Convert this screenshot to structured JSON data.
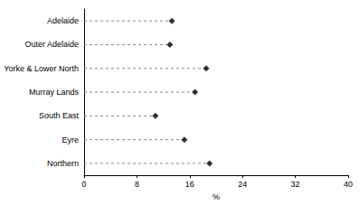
{
  "chart_data": {
    "type": "dot",
    "orientation": "horizontal",
    "categories": [
      "Adelaide",
      "Outer Adelaide",
      "Yorke & Lower North",
      "Murray Lands",
      "South East",
      "Eyre",
      "Northern"
    ],
    "values": [
      13.3,
      13.0,
      18.5,
      16.8,
      10.8,
      15.2,
      19.0
    ],
    "color": "#000000",
    "marker": "diamond",
    "line_style": "dashed",
    "xlabel": "%",
    "xlim": [
      0,
      40
    ],
    "xticks": [
      0,
      8,
      16,
      24,
      32,
      40
    ],
    "grid": false
  }
}
